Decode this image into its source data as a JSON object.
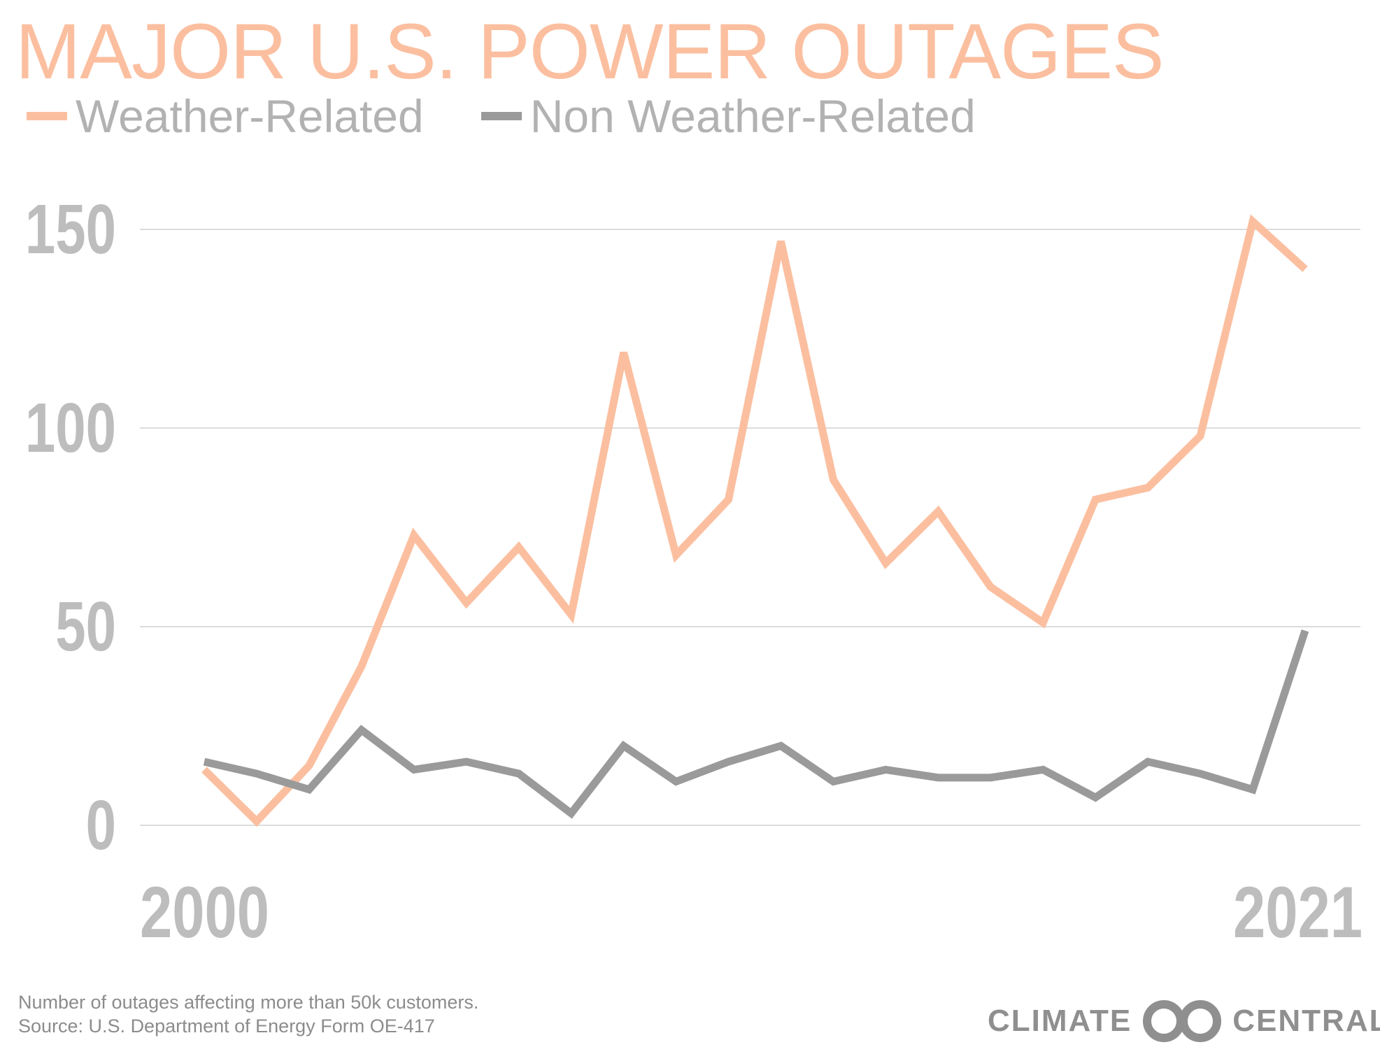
{
  "colors": {
    "weather": "#fbbfa0",
    "non_weather": "#9a9a9a",
    "grid": "#dcdcdc",
    "axis_text": "#bdbdbd"
  },
  "chart_data": {
    "type": "line",
    "title": "MAJOR U.S. POWER OUTAGES",
    "xlabel": "",
    "ylabel": "",
    "x": [
      2000,
      2001,
      2002,
      2003,
      2004,
      2005,
      2006,
      2007,
      2008,
      2009,
      2010,
      2011,
      2012,
      2013,
      2014,
      2015,
      2016,
      2017,
      2018,
      2019,
      2020,
      2021
    ],
    "series": [
      {
        "name": "Weather-Related",
        "values": [
          14,
          1,
          15,
          40,
          73,
          56,
          70,
          53,
          119,
          68,
          82,
          147,
          87,
          66,
          79,
          60,
          51,
          82,
          85,
          98,
          152,
          140
        ]
      },
      {
        "name": "Non Weather-Related",
        "values": [
          16,
          13,
          9,
          24,
          14,
          16,
          13,
          3,
          20,
          11,
          16,
          20,
          11,
          14,
          12,
          12,
          14,
          7,
          16,
          13,
          9,
          49
        ]
      }
    ],
    "y_ticks": [
      "0",
      "50",
      "100",
      "150"
    ],
    "x_tick_labels": [
      "2000",
      "2021"
    ],
    "ylim": [
      0,
      150
    ],
    "xlim": [
      2000,
      2021
    ],
    "grid": true,
    "legend": "top-left"
  },
  "footer": {
    "note_line1": "Number of outages affecting more than 50k customers.",
    "note_line2": "Source: U.S. Department of Energy Form OE-417",
    "brand_left": "CLIMATE",
    "brand_right": "CENTRAL"
  }
}
